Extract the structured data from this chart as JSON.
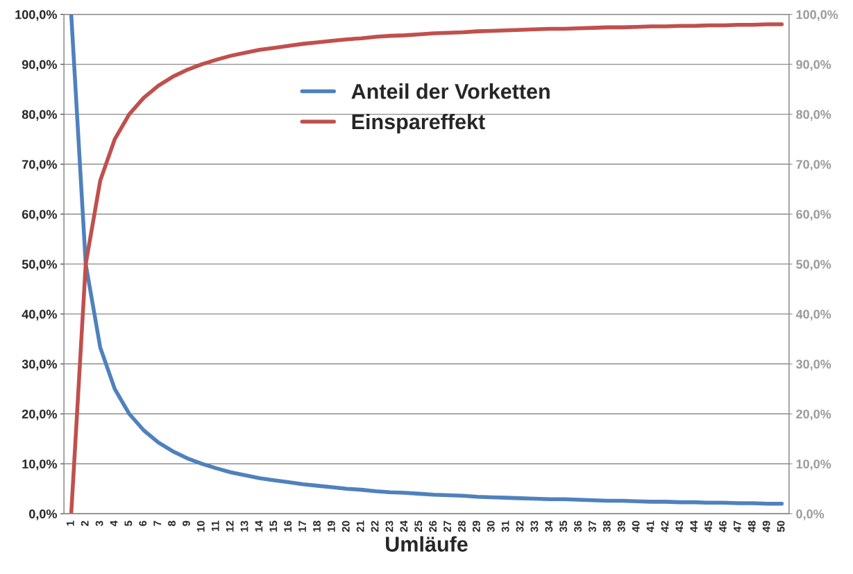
{
  "chart_data": {
    "type": "line",
    "xlabel": "Umläufe",
    "categories": [
      "1",
      "2",
      "3",
      "4",
      "5",
      "6",
      "7",
      "8",
      "9",
      "10",
      "11",
      "12",
      "13",
      "14",
      "15",
      "16",
      "17",
      "18",
      "19",
      "20",
      "21",
      "22",
      "23",
      "24",
      "25",
      "26",
      "27",
      "28",
      "29",
      "30",
      "31",
      "32",
      "33",
      "34",
      "35",
      "36",
      "37",
      "38",
      "39",
      "40",
      "41",
      "42",
      "43",
      "44",
      "45",
      "46",
      "47",
      "48",
      "49",
      "50"
    ],
    "series": [
      {
        "name": "Anteil der Vorketten",
        "color": "#4f81bd",
        "values": [
          100,
          50,
          33.3,
          25,
          20,
          16.7,
          14.3,
          12.5,
          11.1,
          10,
          9.1,
          8.3,
          7.7,
          7.1,
          6.7,
          6.3,
          5.9,
          5.6,
          5.3,
          5,
          4.8,
          4.5,
          4.3,
          4.2,
          4,
          3.8,
          3.7,
          3.6,
          3.4,
          3.3,
          3.2,
          3.1,
          3,
          2.9,
          2.9,
          2.8,
          2.7,
          2.6,
          2.6,
          2.5,
          2.4,
          2.4,
          2.3,
          2.3,
          2.2,
          2.2,
          2.1,
          2.1,
          2,
          2
        ]
      },
      {
        "name": "Einspareffekt",
        "color": "#c0504d",
        "values": [
          0,
          50,
          66.7,
          75,
          80,
          83.3,
          85.7,
          87.5,
          88.9,
          90,
          90.9,
          91.7,
          92.3,
          92.9,
          93.3,
          93.7,
          94.1,
          94.4,
          94.7,
          95,
          95.2,
          95.5,
          95.7,
          95.8,
          96,
          96.2,
          96.3,
          96.4,
          96.6,
          96.7,
          96.8,
          96.9,
          97,
          97.1,
          97.1,
          97.2,
          97.3,
          97.4,
          97.4,
          97.5,
          97.6,
          97.6,
          97.7,
          97.7,
          97.8,
          97.8,
          97.9,
          97.9,
          98,
          98
        ]
      }
    ],
    "ylim": [
      0,
      100
    ],
    "yticks": [
      {
        "value": 0,
        "label": "0,0%"
      },
      {
        "value": 10,
        "label": "10,0%"
      },
      {
        "value": 20,
        "label": "20,0%"
      },
      {
        "value": 30,
        "label": "30,0%"
      },
      {
        "value": 40,
        "label": "40,0%"
      },
      {
        "value": 50,
        "label": "50,0%"
      },
      {
        "value": 60,
        "label": "60,0%"
      },
      {
        "value": 70,
        "label": "70,0%"
      },
      {
        "value": 80,
        "label": "80,0%"
      },
      {
        "value": 90,
        "label": "90,0%"
      },
      {
        "value": 100,
        "label": "100,0%"
      }
    ],
    "y2lim": [
      0,
      100
    ],
    "y2ticks": [
      {
        "value": 0,
        "label": "0,0%"
      },
      {
        "value": 10,
        "label": "10,0%"
      },
      {
        "value": 20,
        "label": "20,0%"
      },
      {
        "value": 30,
        "label": "30,0%"
      },
      {
        "value": 40,
        "label": "40,0%"
      },
      {
        "value": 50,
        "label": "50,0%"
      },
      {
        "value": 60,
        "label": "60,0%"
      },
      {
        "value": 70,
        "label": "70,0%"
      },
      {
        "value": 80,
        "label": "80,0%"
      },
      {
        "value": 90,
        "label": "90,0%"
      },
      {
        "value": 100,
        "label": "100,0%"
      }
    ],
    "grid": "y",
    "legend": "top",
    "marker": "none",
    "line_style": "solid"
  }
}
